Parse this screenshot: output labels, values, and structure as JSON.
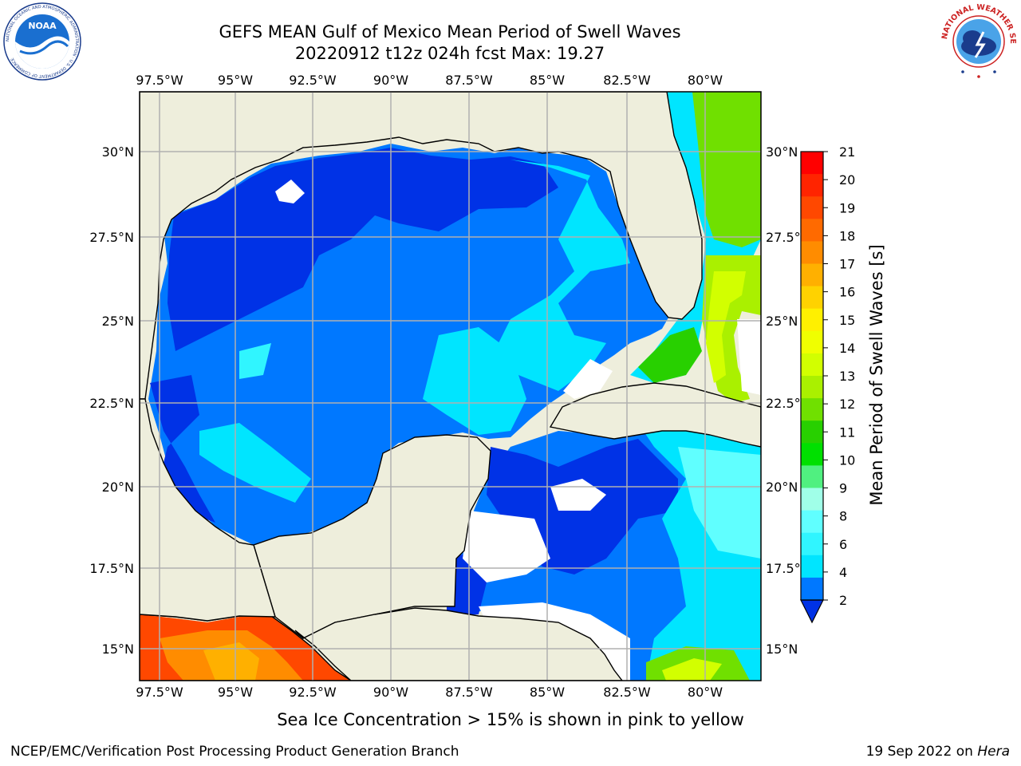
{
  "header": {
    "title_line1": "GEFS MEAN Gulf of Mexico Mean Period of Swell Waves",
    "title_line2": "20220912 t12z 024h fcst   Max: 19.27"
  },
  "logos": {
    "left": {
      "name": "NOAA",
      "ring_text": "NATIONAL OCEANIC AND ATMOSPHERIC ADMINISTRATION · U.S. DEPARTMENT OF COMMERCE"
    },
    "right": {
      "ring_text": "NATIONAL WEATHER SERVICE"
    }
  },
  "map": {
    "lon_labels": [
      "97.5°W",
      "95°W",
      "92.5°W",
      "90°W",
      "87.5°W",
      "85°W",
      "82.5°W",
      "80°W"
    ],
    "lat_labels": [
      "30°N",
      "27.5°N",
      "25°N",
      "22.5°N",
      "20°N",
      "17.5°N",
      "15°N"
    ],
    "land_color": "#eeeedc",
    "coast_color": "#000000",
    "grid_color": "#b0b0b0"
  },
  "colorbar": {
    "label": "Mean Period of Swell Waves [s]",
    "ticks": [
      "21",
      "20",
      "19",
      "18",
      "17",
      "16",
      "15",
      "14",
      "13",
      "12",
      "11",
      "10",
      "9",
      "8",
      "6",
      "4",
      "2"
    ],
    "colors_top_to_bottom": [
      "#ff0000",
      "#ff2400",
      "#ff4800",
      "#ff6a00",
      "#ff8c00",
      "#ffb000",
      "#ffd200",
      "#fff000",
      "#f0ff00",
      "#d2ff00",
      "#aaf000",
      "#70e000",
      "#28d000",
      "#00e000",
      "#50f080",
      "#a0ffe8",
      "#60ffff",
      "#30f5ff",
      "#00e5ff",
      "#0078ff"
    ],
    "extend_color": "#0032e6"
  },
  "caption": "Sea Ice Concentration > 15% is shown in pink to yellow",
  "footer": {
    "left": "NCEP/EMC/Verification Post Processing Product Generation Branch",
    "right_date": "19 Sep 2022 on ",
    "right_host": "Hera"
  }
}
